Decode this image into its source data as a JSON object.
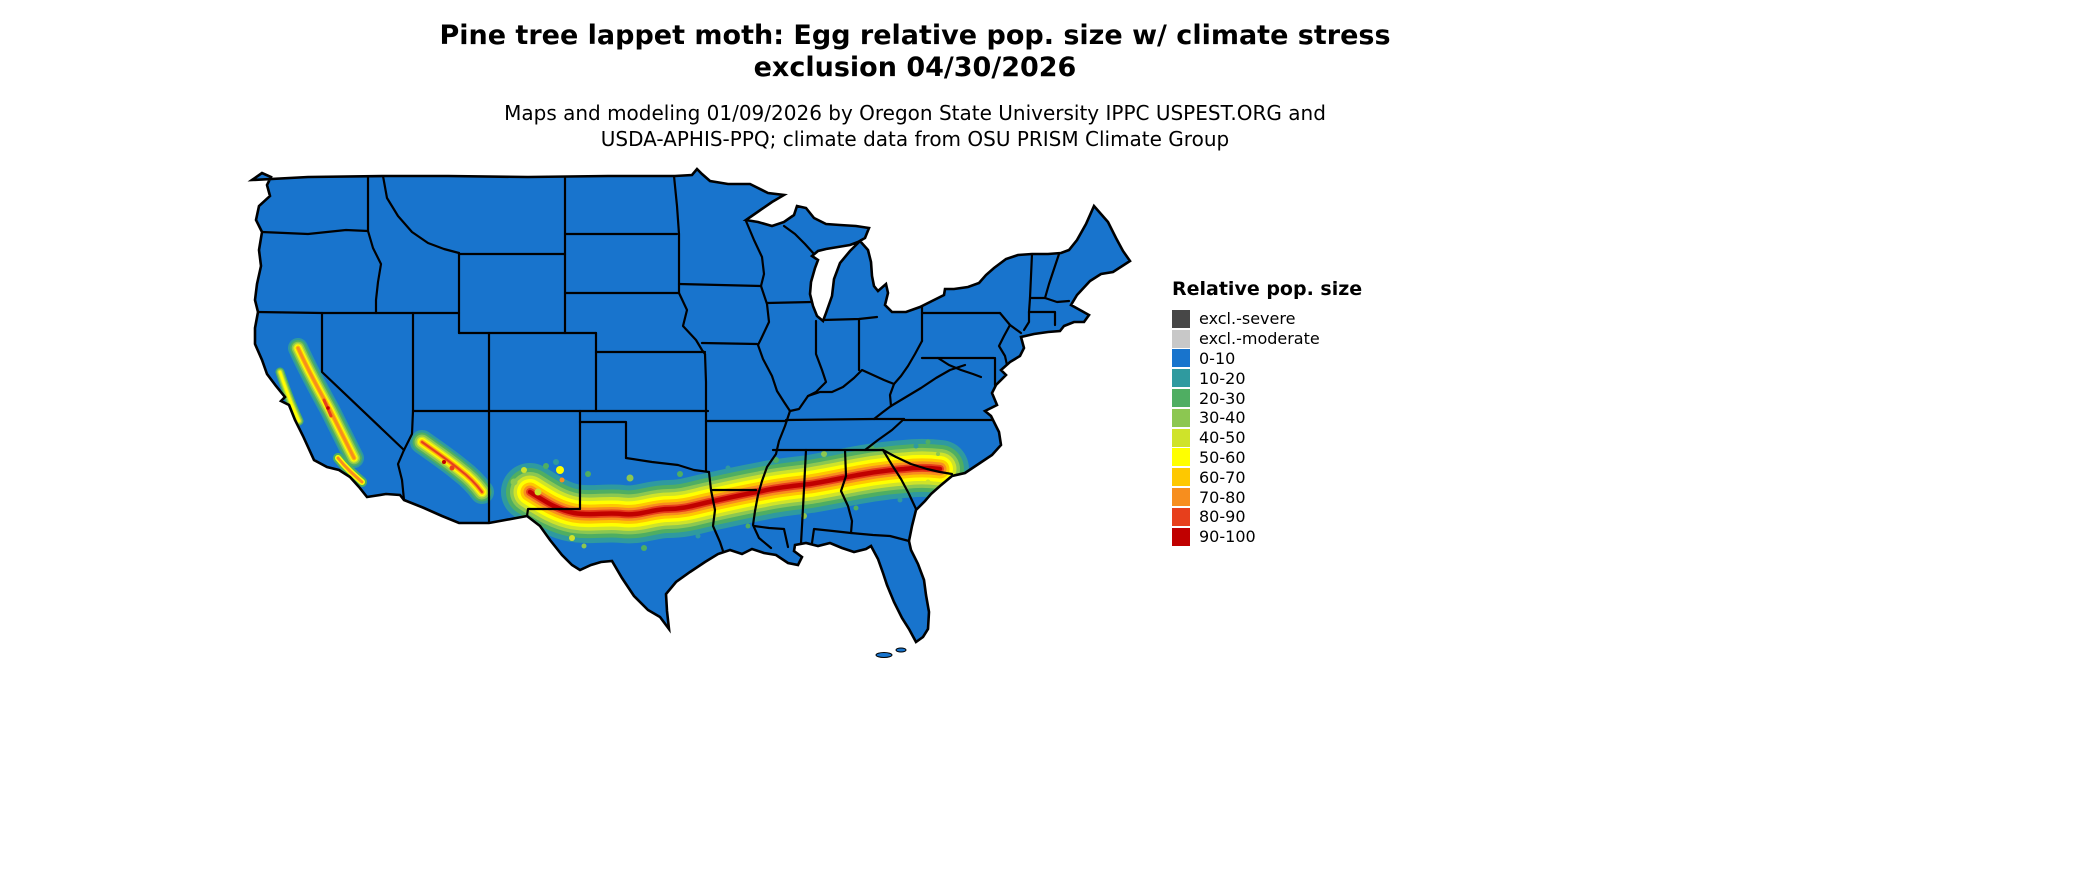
{
  "title": {
    "line1": "Pine tree lappet moth: Egg relative pop. size w/ climate stress",
    "line2": "exclusion 04/30/2026"
  },
  "subtitle": {
    "line1": "Maps and modeling 01/09/2026 by Oregon State University IPPC USPEST.ORG and",
    "line2": "USDA-APHIS-PPQ; climate data from OSU PRISM Climate Group"
  },
  "legend": {
    "title": "Relative pop. size",
    "items": [
      {
        "label": "excl.-severe",
        "color": "#474747"
      },
      {
        "label": "excl.-moderate",
        "color": "#c8c8c8"
      },
      {
        "label": "0-10",
        "color": "#1874cd"
      },
      {
        "label": "10-20",
        "color": "#2f9a9f"
      },
      {
        "label": "20-30",
        "color": "#4fae62"
      },
      {
        "label": "30-40",
        "color": "#8cc751"
      },
      {
        "label": "40-50",
        "color": "#cfe32a"
      },
      {
        "label": "50-60",
        "color": "#ffff00"
      },
      {
        "label": "60-70",
        "color": "#fec800"
      },
      {
        "label": "70-80",
        "color": "#f78e1e"
      },
      {
        "label": "80-90",
        "color": "#e73f1c"
      },
      {
        "label": "90-100",
        "color": "#c00000"
      }
    ]
  },
  "map": {
    "region_label": "Contiguous United States",
    "outline_color": "#000000",
    "background_color": "#ffffff"
  }
}
